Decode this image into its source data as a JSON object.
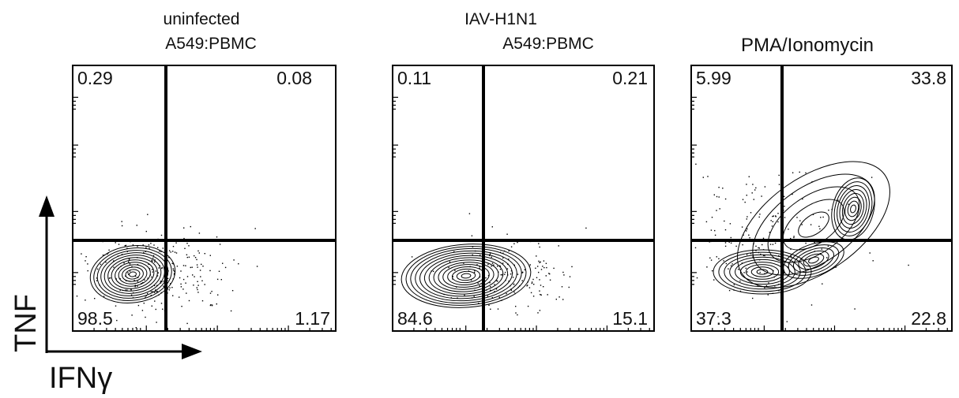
{
  "chart_data": [
    {
      "type": "contour-scatter",
      "title": [
        "uninfected",
        "A549:PBMC"
      ],
      "quadrants": {
        "upper_left": "0.29",
        "upper_right": "0.08",
        "lower_left": "98.5",
        "lower_right": "1.17"
      }
    },
    {
      "type": "contour-scatter",
      "title": [
        "IAV-H1N1",
        "A549:PBMC"
      ],
      "quadrants": {
        "upper_left": "0.11",
        "upper_right": "0.21",
        "lower_left": "84.6",
        "lower_right": "15.1"
      }
    },
    {
      "type": "contour-scatter",
      "title": [
        "PMA/Ionomycin"
      ],
      "quadrants": {
        "upper_left": "5.99",
        "upper_right": "33.8",
        "lower_left": "37.3",
        "lower_right": "22.8"
      }
    }
  ],
  "axes": {
    "xlabel": "IFNγ",
    "ylabel": "TNF"
  },
  "colors": {
    "ink": "#000000",
    "background": "#ffffff"
  }
}
